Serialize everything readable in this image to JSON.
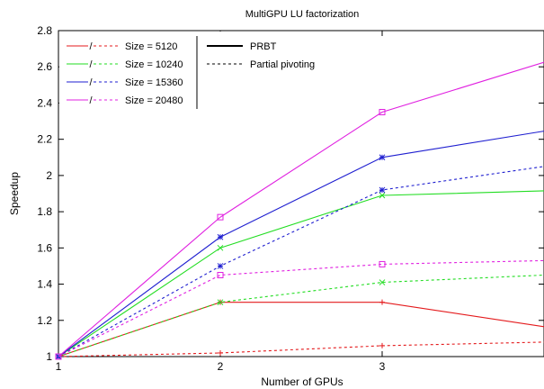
{
  "chart_data": {
    "type": "line",
    "title": "MultiGPU LU factorization",
    "xlabel": "Number of GPUs",
    "ylabel": "Speedup",
    "xlim": [
      1,
      4
    ],
    "ylim": [
      1,
      2.8
    ],
    "x_ticks": [
      1,
      2,
      3
    ],
    "y_ticks": [
      1,
      1.2,
      1.4,
      1.6,
      1.8,
      2,
      2.2,
      2.4,
      2.6,
      2.8
    ],
    "y_tick_labels": [
      "1",
      "1.2",
      "1.4",
      "1.6",
      "1.8",
      "2",
      "2.2",
      "2.4",
      "2.6",
      "2.8"
    ],
    "grid": false,
    "legend_position": "top-left",
    "x": [
      1,
      2,
      3,
      4
    ],
    "series": [
      {
        "name": "Size = 5120",
        "method": "PRBT",
        "color": "#e41a1c",
        "dashed": false,
        "marker": "plus",
        "values": [
          1,
          1.3,
          1.3,
          1.165
        ]
      },
      {
        "name": "Size = 5120",
        "method": "Partial pivoting",
        "color": "#e41a1c",
        "dashed": true,
        "marker": "plus",
        "values": [
          1,
          1.02,
          1.06,
          1.08
        ]
      },
      {
        "name": "Size = 10240",
        "method": "PRBT",
        "color": "#22dd22",
        "dashed": false,
        "marker": "x",
        "values": [
          1,
          1.6,
          1.89,
          1.915
        ]
      },
      {
        "name": "Size = 10240",
        "method": "Partial pivoting",
        "color": "#22dd22",
        "dashed": true,
        "marker": "x",
        "values": [
          1,
          1.3,
          1.41,
          1.45
        ]
      },
      {
        "name": "Size = 15360",
        "method": "PRBT",
        "color": "#1f1fd0",
        "dashed": false,
        "marker": "star",
        "values": [
          1,
          1.66,
          2.1,
          2.245
        ]
      },
      {
        "name": "Size = 15360",
        "method": "Partial pivoting",
        "color": "#1f1fd0",
        "dashed": true,
        "marker": "star",
        "values": [
          1,
          1.5,
          1.92,
          2.05
        ]
      },
      {
        "name": "Size = 20480",
        "method": "PRBT",
        "color": "#e020e0",
        "dashed": false,
        "marker": "square",
        "values": [
          1,
          1.77,
          2.35,
          2.625
        ]
      },
      {
        "name": "Size = 20480",
        "method": "Partial pivoting",
        "color": "#e020e0",
        "dashed": true,
        "marker": "square",
        "values": [
          1,
          1.45,
          1.51,
          1.53
        ]
      }
    ],
    "legend": {
      "sizes": [
        {
          "label": "Size = 5120",
          "color": "#e41a1c"
        },
        {
          "label": "Size = 10240",
          "color": "#22dd22"
        },
        {
          "label": "Size = 15360",
          "color": "#1f1fd0"
        },
        {
          "label": "Size = 20480",
          "color": "#e020e0"
        }
      ],
      "methods": [
        {
          "label": "PRBT",
          "dashed": false
        },
        {
          "label": "Partial pivoting",
          "dashed": true
        }
      ]
    }
  }
}
